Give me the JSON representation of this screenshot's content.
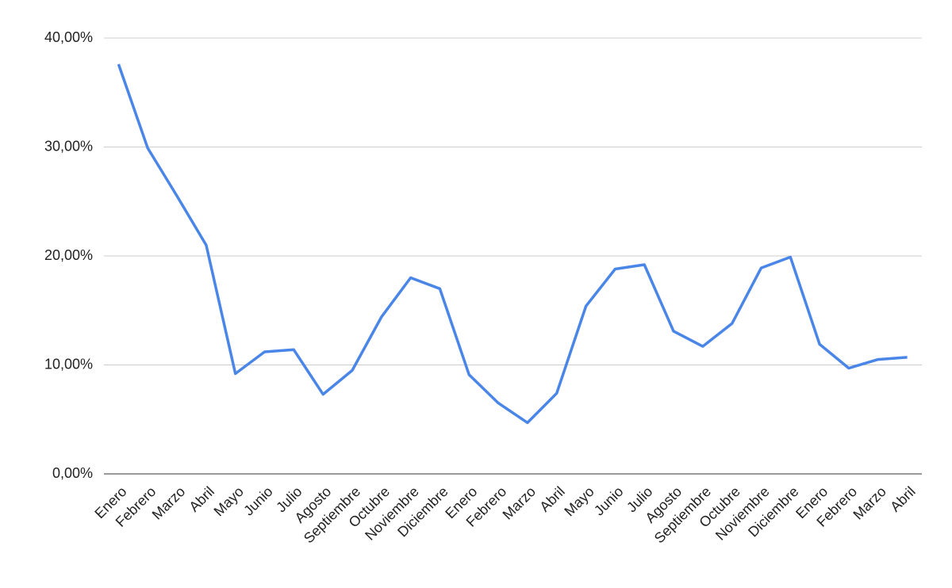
{
  "chart_data": {
    "type": "line",
    "categories": [
      "Enero",
      "Febrero",
      "Marzo",
      "Abril",
      "Mayo",
      "Junio",
      "Julio",
      "Agosto",
      "Septiembre",
      "Octubre",
      "Noviembre",
      "Diciembre",
      "Enero",
      "Febrero",
      "Marzo",
      "Abril",
      "Mayo",
      "Junio",
      "Julio",
      "Agosto",
      "Septiembre",
      "Octubre",
      "Noviembre",
      "Diciembre",
      "Enero",
      "Febrero",
      "Marzo",
      "Abril"
    ],
    "values": [
      37.6,
      29.9,
      25.5,
      21.0,
      9.2,
      11.2,
      11.4,
      7.3,
      9.5,
      14.4,
      18.0,
      17.0,
      9.1,
      6.5,
      4.7,
      7.4,
      15.4,
      18.8,
      19.2,
      13.1,
      11.7,
      13.8,
      18.9,
      19.9,
      11.9,
      9.7,
      10.5,
      10.7
    ],
    "color": "#4a86e8",
    "ylim": [
      0,
      40
    ],
    "yticks": [
      {
        "value": 0,
        "label": "0,00%"
      },
      {
        "value": 10,
        "label": "10,00%"
      },
      {
        "value": 20,
        "label": "20,00%"
      },
      {
        "value": 30,
        "label": "30,00%"
      },
      {
        "value": 40,
        "label": "40,00%"
      }
    ],
    "grid": true
  }
}
